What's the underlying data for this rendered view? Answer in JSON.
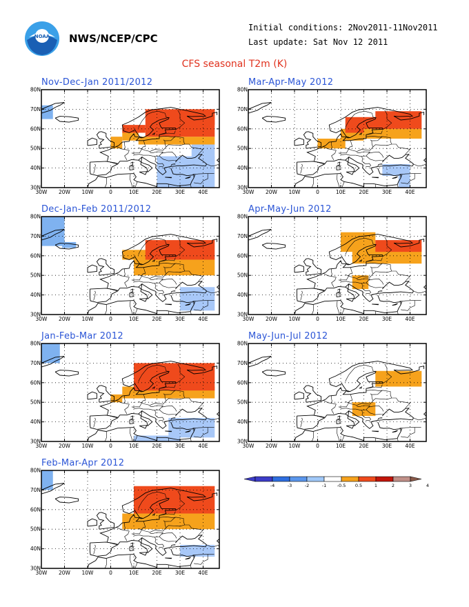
{
  "header": {
    "org": "NWS/NCEP/CPC",
    "initial_conditions": "Initial conditions: 2Nov2011-11Nov2011",
    "last_update": "Last update: Sat Nov 12 2011",
    "plot_title": "CFS seasonal T2m (K)"
  },
  "axes": {
    "lon_ticks": [
      "30W",
      "20W",
      "10W",
      "0",
      "10E",
      "20E",
      "30E",
      "40E"
    ],
    "lat_ticks": [
      "30N",
      "40N",
      "50N",
      "60N",
      "70N",
      "80N"
    ]
  },
  "colors": {
    "lt_blue": "#7fb2f0",
    "blue": "#a8c8f8",
    "orange": "#f6a21c",
    "red": "#ef4a1c",
    "dark_red": "#c2150a",
    "label_blue": "#2b55d6",
    "title_red": "#e0321e"
  },
  "panels": [
    {
      "label": "Nov-Dec-Jan 2011/2012",
      "cells": [
        {
          "lon": [
            -30,
            -25
          ],
          "lat": [
            65,
            72
          ],
          "c": "lt_blue"
        },
        {
          "lon": [
            0,
            5
          ],
          "lat": [
            50,
            56
          ],
          "c": "orange"
        },
        {
          "lon": [
            5,
            12
          ],
          "lat": [
            54,
            58
          ],
          "c": "orange"
        },
        {
          "lon": [
            5,
            15
          ],
          "lat": [
            58,
            62
          ],
          "c": "red"
        },
        {
          "lon": [
            12,
            45
          ],
          "lat": [
            52,
            56
          ],
          "c": "orange"
        },
        {
          "lon": [
            15,
            45
          ],
          "lat": [
            56,
            70
          ],
          "c": "red"
        },
        {
          "lon": [
            25,
            45
          ],
          "lat": [
            62,
            70
          ],
          "c": "red"
        },
        {
          "lon": [
            20,
            45
          ],
          "lat": [
            30,
            46
          ],
          "c": "blue"
        },
        {
          "lon": [
            35,
            45
          ],
          "lat": [
            40,
            52
          ],
          "c": "blue"
        }
      ]
    },
    {
      "label": "Mar-Apr-May 2012",
      "cells": [
        {
          "lon": [
            0,
            12
          ],
          "lat": [
            50,
            55
          ],
          "c": "orange"
        },
        {
          "lon": [
            10,
            20
          ],
          "lat": [
            54,
            60
          ],
          "c": "orange"
        },
        {
          "lon": [
            12,
            32
          ],
          "lat": [
            58,
            66
          ],
          "c": "red"
        },
        {
          "lon": [
            20,
            45
          ],
          "lat": [
            55,
            60
          ],
          "c": "orange"
        },
        {
          "lon": [
            25,
            45
          ],
          "lat": [
            60,
            69
          ],
          "c": "red"
        },
        {
          "lon": [
            28,
            40
          ],
          "lat": [
            36,
            42
          ],
          "c": "blue"
        },
        {
          "lon": [
            35,
            40
          ],
          "lat": [
            30,
            36
          ],
          "c": "blue"
        }
      ]
    },
    {
      "label": "Dec-Jan-Feb 2011/2012",
      "cells": [
        {
          "lon": [
            -30,
            -20
          ],
          "lat": [
            65,
            80
          ],
          "c": "lt_blue"
        },
        {
          "lon": [
            -21,
            -15
          ],
          "lat": [
            64,
            67
          ],
          "c": "lt_blue"
        },
        {
          "lon": [
            10,
            45
          ],
          "lat": [
            50,
            58
          ],
          "c": "orange"
        },
        {
          "lon": [
            5,
            20
          ],
          "lat": [
            58,
            63
          ],
          "c": "orange"
        },
        {
          "lon": [
            15,
            45
          ],
          "lat": [
            58,
            68
          ],
          "c": "red"
        },
        {
          "lon": [
            30,
            45
          ],
          "lat": [
            32,
            44
          ],
          "c": "blue"
        }
      ]
    },
    {
      "label": "Apr-May-Jun 2012",
      "cells": [
        {
          "lon": [
            10,
            25
          ],
          "lat": [
            62,
            72
          ],
          "c": "orange"
        },
        {
          "lon": [
            15,
            45
          ],
          "lat": [
            56,
            65
          ],
          "c": "orange"
        },
        {
          "lon": [
            25,
            45
          ],
          "lat": [
            62,
            68
          ],
          "c": "red"
        },
        {
          "lon": [
            15,
            22
          ],
          "lat": [
            43,
            50
          ],
          "c": "orange"
        }
      ]
    },
    {
      "label": "Jan-Feb-Mar 2012",
      "cells": [
        {
          "lon": [
            -30,
            -22
          ],
          "lat": [
            70,
            80
          ],
          "c": "lt_blue"
        },
        {
          "lon": [
            0,
            5
          ],
          "lat": [
            50,
            54
          ],
          "c": "orange"
        },
        {
          "lon": [
            5,
            45
          ],
          "lat": [
            52,
            58
          ],
          "c": "orange"
        },
        {
          "lon": [
            10,
            45
          ],
          "lat": [
            56,
            70
          ],
          "c": "red"
        },
        {
          "lon": [
            25,
            45
          ],
          "lat": [
            32,
            42
          ],
          "c": "blue"
        },
        {
          "lon": [
            10,
            30
          ],
          "lat": [
            30,
            33
          ],
          "c": "blue"
        }
      ]
    },
    {
      "label": "May-Jun-Jul 2012",
      "cells": [
        {
          "lon": [
            25,
            45
          ],
          "lat": [
            58,
            66
          ],
          "c": "orange"
        },
        {
          "lon": [
            15,
            25
          ],
          "lat": [
            43,
            50
          ],
          "c": "orange"
        }
      ]
    },
    {
      "label": "Feb-Mar-Apr 2012",
      "cells": [
        {
          "lon": [
            -30,
            -25
          ],
          "lat": [
            70,
            80
          ],
          "c": "lt_blue"
        },
        {
          "lon": [
            5,
            45
          ],
          "lat": [
            50,
            58
          ],
          "c": "orange"
        },
        {
          "lon": [
            10,
            45
          ],
          "lat": [
            58,
            72
          ],
          "c": "red"
        },
        {
          "lon": [
            30,
            45
          ],
          "lat": [
            36,
            42
          ],
          "c": "blue"
        }
      ]
    }
  ],
  "colorbar": {
    "labels": [
      "-4",
      "-3",
      "-2",
      "-1",
      "-0.5",
      "0.5",
      "1",
      "2",
      "3",
      "4"
    ],
    "colors": [
      "#3c3cc8",
      "#2e6ee0",
      "#5a96ec",
      "#a0c8f8",
      "#ffffff",
      "#f6a21c",
      "#ef4a1c",
      "#c2150a",
      "#c09088"
    ],
    "end_low": "#3c3cc8",
    "end_high": "#8a5a4a"
  }
}
